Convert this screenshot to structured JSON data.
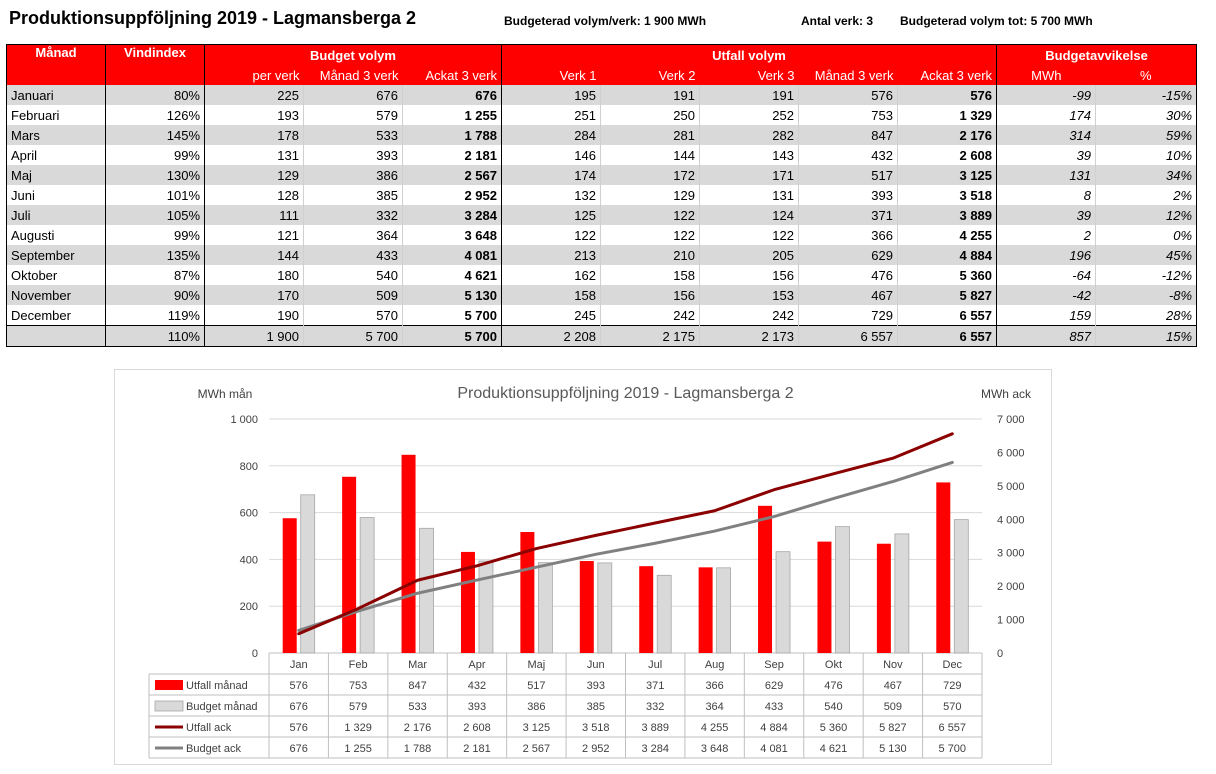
{
  "header": {
    "title": "Produktionsuppföljning 2019 - Lagmansberga 2",
    "budget_per_verk": "Budgeterad volym/verk: 1 900 MWh",
    "antal_verk": "Antal verk: 3",
    "budget_tot": "Budgeterad volym tot: 5 700 MWh"
  },
  "table": {
    "group_headers": {
      "manad": "Månad",
      "vindindex": "Vindindex",
      "budget": "Budget volym",
      "utfall": "Utfall volym",
      "avvikelse": "Budgetavvikelse"
    },
    "sub_headers": [
      "per verk",
      "Månad 3 verk",
      "Ackat 3 verk",
      "Verk 1",
      "Verk 2",
      "Verk 3",
      "Månad 3 verk",
      "Ackat 3 verk",
      "MWh",
      "%"
    ],
    "rows": [
      [
        "Januari",
        "80%",
        "225",
        "676",
        "676",
        "195",
        "191",
        "191",
        "576",
        "576",
        "-99",
        "-15%"
      ],
      [
        "Februari",
        "126%",
        "193",
        "579",
        "1 255",
        "251",
        "250",
        "252",
        "753",
        "1 329",
        "174",
        "30%"
      ],
      [
        "Mars",
        "145%",
        "178",
        "533",
        "1 788",
        "284",
        "281",
        "282",
        "847",
        "2 176",
        "314",
        "59%"
      ],
      [
        "April",
        "99%",
        "131",
        "393",
        "2 181",
        "146",
        "144",
        "143",
        "432",
        "2 608",
        "39",
        "10%"
      ],
      [
        "Maj",
        "130%",
        "129",
        "386",
        "2 567",
        "174",
        "172",
        "171",
        "517",
        "3 125",
        "131",
        "34%"
      ],
      [
        "Juni",
        "101%",
        "128",
        "385",
        "2 952",
        "132",
        "129",
        "131",
        "393",
        "3 518",
        "8",
        "2%"
      ],
      [
        "Juli",
        "105%",
        "111",
        "332",
        "3 284",
        "125",
        "122",
        "124",
        "371",
        "3 889",
        "39",
        "12%"
      ],
      [
        "Augusti",
        "99%",
        "121",
        "364",
        "3 648",
        "122",
        "122",
        "122",
        "366",
        "4 255",
        "2",
        "0%"
      ],
      [
        "September",
        "135%",
        "144",
        "433",
        "4 081",
        "213",
        "210",
        "205",
        "629",
        "4 884",
        "196",
        "45%"
      ],
      [
        "Oktober",
        "87%",
        "180",
        "540",
        "4 621",
        "162",
        "158",
        "156",
        "476",
        "5 360",
        "-64",
        "-12%"
      ],
      [
        "November",
        "90%",
        "170",
        "509",
        "5 130",
        "158",
        "156",
        "153",
        "467",
        "5 827",
        "-42",
        "-8%"
      ],
      [
        "December",
        "119%",
        "190",
        "570",
        "5 700",
        "245",
        "242",
        "242",
        "729",
        "6 557",
        "159",
        "28%"
      ]
    ],
    "totals": [
      "",
      "110%",
      "1 900",
      "5 700",
      "5 700",
      "2 208",
      "2 175",
      "2 173",
      "6 557",
      "6 557",
      "857",
      "15%"
    ]
  },
  "chart_data": {
    "type": "bar",
    "title": "Produktionsuppföljning 2019 - Lagmansberga 2",
    "ylabel": "MWh mån",
    "y2label": "MWh ack",
    "ylim": [
      0,
      1000
    ],
    "y2lim": [
      0,
      7000
    ],
    "yticks": [
      0,
      200,
      400,
      600,
      800,
      1000
    ],
    "y2ticks": [
      0,
      1000,
      2000,
      3000,
      4000,
      5000,
      6000,
      7000
    ],
    "categories": [
      "Jan",
      "Feb",
      "Mar",
      "Apr",
      "Maj",
      "Jun",
      "Jul",
      "Aug",
      "Sep",
      "Okt",
      "Nov",
      "Dec"
    ],
    "series": [
      {
        "name": "Utfall månad",
        "kind": "bar",
        "axis": "left",
        "color": "#ff0000",
        "values": [
          576,
          753,
          847,
          432,
          517,
          393,
          371,
          366,
          629,
          476,
          467,
          729
        ]
      },
      {
        "name": "Budget månad",
        "kind": "bar",
        "axis": "left",
        "color": "#d9d9d9",
        "values": [
          676,
          579,
          533,
          393,
          386,
          385,
          332,
          364,
          433,
          540,
          509,
          570
        ]
      },
      {
        "name": "Utfall ack",
        "kind": "line",
        "axis": "right",
        "color": "#8b0000",
        "values": [
          576,
          1329,
          2176,
          2608,
          3125,
          3518,
          3889,
          4255,
          4884,
          5360,
          5827,
          6557
        ]
      },
      {
        "name": "Budget ack",
        "kind": "line",
        "axis": "right",
        "color": "#808080",
        "values": [
          676,
          1255,
          1788,
          2181,
          2567,
          2952,
          3284,
          3648,
          4081,
          4621,
          5130,
          5700
        ]
      }
    ],
    "data_table": true,
    "grid": true
  }
}
